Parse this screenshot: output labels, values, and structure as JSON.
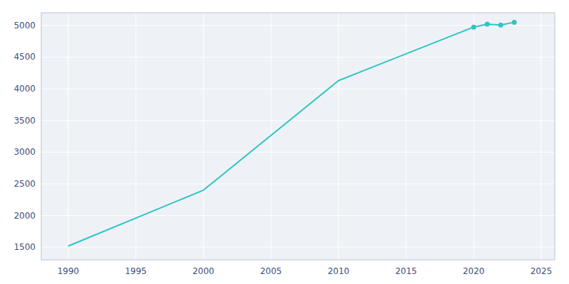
{
  "chart_data": {
    "type": "line",
    "x": [
      1990,
      2000,
      2010,
      2020,
      2021,
      2022,
      2023
    ],
    "series": [
      {
        "type": "line",
        "color": "#2EC4C4",
        "values": [
          1519,
          2400,
          4130,
          4974,
          5020,
          5007,
          5050
        ]
      },
      {
        "type": "scatter",
        "color": "#2EC4C4",
        "marker": "circle",
        "values": [
          null,
          null,
          null,
          4974,
          5020,
          5007,
          5050
        ]
      }
    ],
    "xlim": [
      1988,
      2026
    ],
    "ylim": [
      1300,
      5200
    ],
    "xticks": [
      1990,
      1995,
      2000,
      2005,
      2010,
      2015,
      2020,
      2025
    ],
    "yticks": [
      1500,
      2000,
      2500,
      3000,
      3500,
      4000,
      4500,
      5000
    ],
    "grid": true
  }
}
